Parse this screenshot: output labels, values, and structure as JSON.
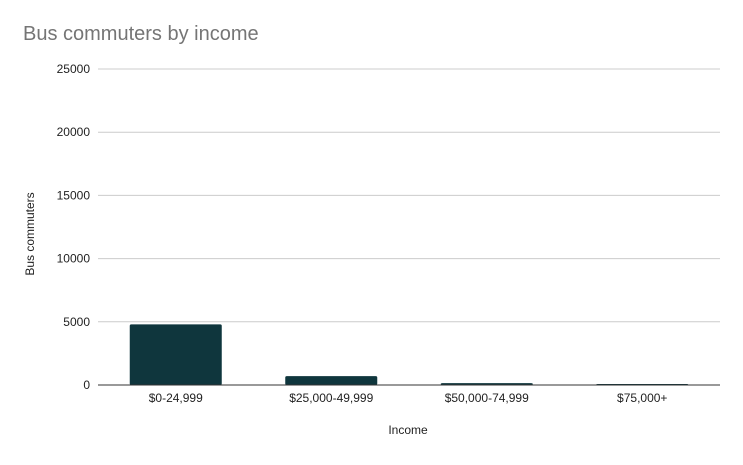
{
  "chart_data": {
    "type": "bar",
    "title": "Bus commuters by income",
    "xlabel": "Income",
    "ylabel": "Bus commuters",
    "categories": [
      "$0-24,999",
      "$25,000-49,999",
      "$50,000-74,999",
      "$75,000+"
    ],
    "values": [
      4800,
      700,
      150,
      80
    ],
    "ylim": [
      0,
      25000
    ],
    "yticks": [
      "0",
      "5000",
      "10000",
      "15000",
      "20000",
      "25000"
    ],
    "grid": true,
    "legend": "none",
    "bar_color": "#0f363d",
    "grid_color": "#cccccc",
    "axis_color": "#333333",
    "title_color": "#757575",
    "text_color": "#222222"
  }
}
